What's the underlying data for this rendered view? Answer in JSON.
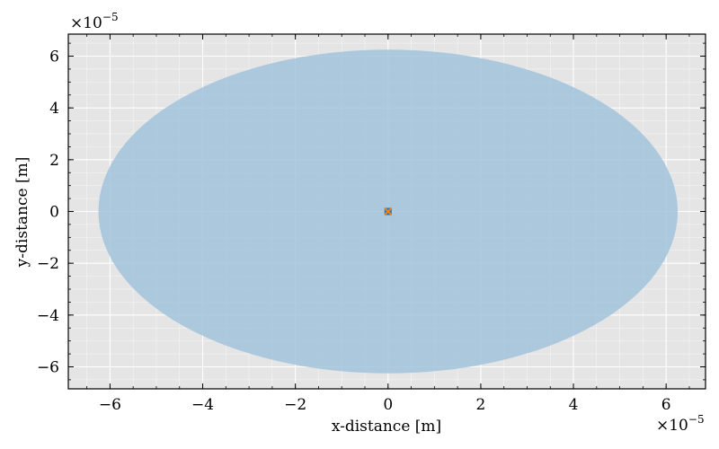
{
  "chart_data": {
    "type": "scatter",
    "title": "",
    "xlabel": "x-distance [m]",
    "ylabel": "y-distance [m]",
    "x_offset_text": "×10",
    "x_offset_exponent": "−5",
    "y_offset_text": "×10",
    "y_offset_exponent": "−5",
    "xlim": [
      -6.9e-05,
      6.85e-05
    ],
    "ylim": [
      -6.85e-05,
      6.85e-05
    ],
    "xticks": [
      -6e-05,
      -4e-05,
      -2e-05,
      0,
      2e-05,
      4e-05,
      6e-05
    ],
    "yticks": [
      -6e-05,
      -4e-05,
      -2e-05,
      0,
      2e-05,
      4e-05,
      6e-05
    ],
    "xtick_labels": [
      "−6",
      "−4",
      "−2",
      "0",
      "2",
      "4",
      "6"
    ],
    "ytick_labels": [
      "−6",
      "−4",
      "−2",
      "0",
      "2",
      "4",
      "6"
    ],
    "grid": true,
    "background_color": "#e5e5e5",
    "grid_color": "#ffffff",
    "shapes": [
      {
        "kind": "ellipse",
        "center": [
          0,
          0
        ],
        "x_radius": 6.25e-05,
        "y_radius": 6.25e-05,
        "color": "#a2c3dc"
      }
    ],
    "points": [
      {
        "x": 0,
        "y": 0,
        "marker": "square",
        "color": "#1f77b4"
      },
      {
        "x": 0,
        "y": 0,
        "marker": "x",
        "color": "#ff7f0e"
      }
    ]
  }
}
